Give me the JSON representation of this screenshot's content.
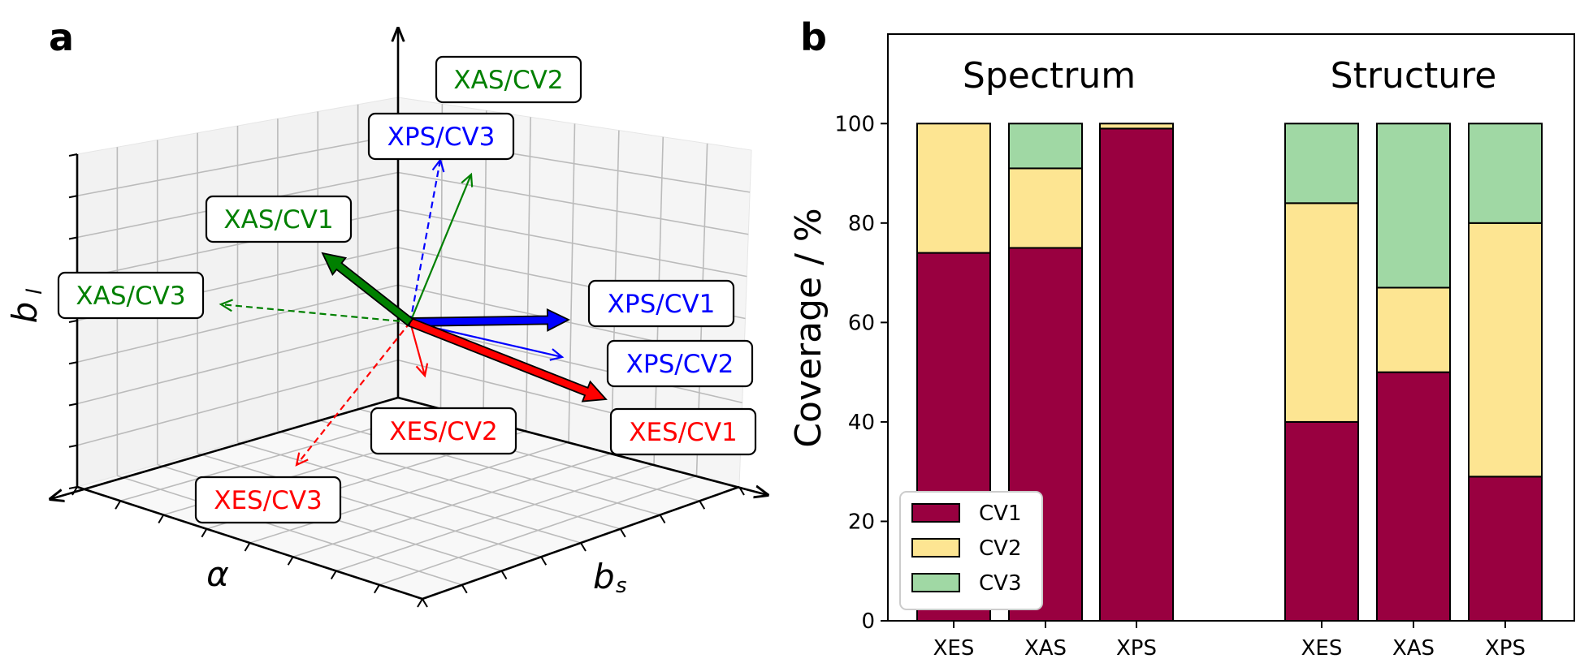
{
  "chart_data": [
    {
      "panel": "a",
      "type": "3d-vector-plot",
      "axes": {
        "x_label": "α",
        "y_label": "b",
        "y_label_sub": "s",
        "z_label": "b",
        "z_label_sub": "l"
      },
      "vectors": [
        {
          "label": "XPS/CV1",
          "color": "#0000ff",
          "style": "thick"
        },
        {
          "label": "XPS/CV2",
          "color": "#0000ff",
          "style": "thin"
        },
        {
          "label": "XPS/CV3",
          "color": "#0000ff",
          "style": "dashed"
        },
        {
          "label": "XES/CV1",
          "color": "#ff0000",
          "style": "thick"
        },
        {
          "label": "XES/CV2",
          "color": "#ff0000",
          "style": "thin"
        },
        {
          "label": "XES/CV3",
          "color": "#ff0000",
          "style": "dashed"
        },
        {
          "label": "XAS/CV1",
          "color": "#008000",
          "style": "thick"
        },
        {
          "label": "XAS/CV2",
          "color": "#008000",
          "style": "thin"
        },
        {
          "label": "XAS/CV3",
          "color": "#008000",
          "style": "dashed"
        }
      ]
    },
    {
      "panel": "b",
      "type": "bar",
      "stacked": true,
      "ylabel": "Coverage / %",
      "ylim": [
        0,
        118
      ],
      "yticks": [
        0,
        20,
        40,
        60,
        80,
        100
      ],
      "groups": [
        {
          "title": "Spectrum",
          "categories": [
            "XES",
            "XAS",
            "XPS"
          ]
        },
        {
          "title": "Structure",
          "categories": [
            "XES",
            "XAS",
            "XPS"
          ]
        }
      ],
      "series": [
        {
          "name": "CV1",
          "color": "#990040",
          "values": [
            74,
            75,
            99,
            40,
            50,
            29
          ]
        },
        {
          "name": "CV2",
          "color": "#fde592",
          "values": [
            26,
            16,
            1,
            44,
            17,
            51
          ]
        },
        {
          "name": "CV3",
          "color": "#a0d8a4",
          "values": [
            0,
            9,
            0,
            16,
            33,
            20
          ]
        }
      ],
      "legend": {
        "position": "bottom-left",
        "labels": [
          "CV1",
          "CV2",
          "CV3"
        ]
      }
    }
  ],
  "panel_labels": {
    "a": "a",
    "b": "b"
  }
}
